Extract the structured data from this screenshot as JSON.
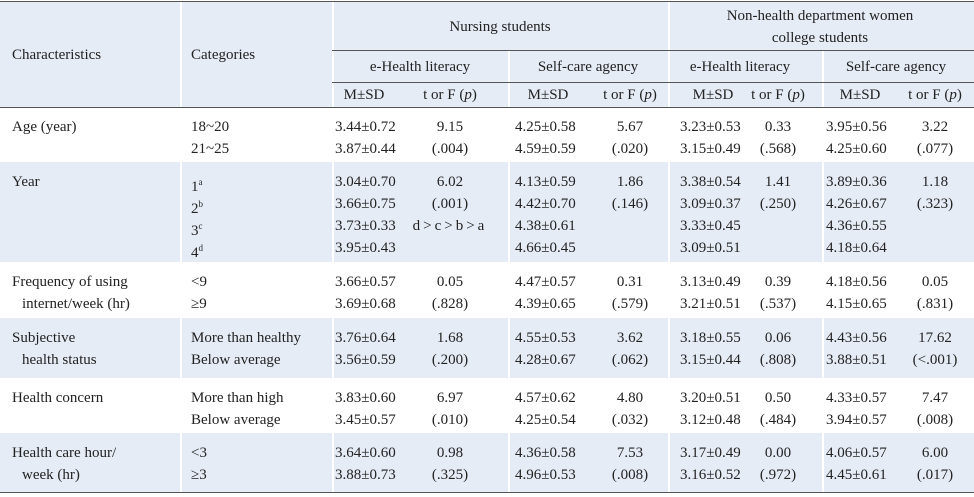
{
  "table": {
    "header": {
      "characteristics": "Characteristics",
      "categories": "Categories",
      "groups": [
        {
          "title": [
            "Nursing students"
          ],
          "sub": [
            "e-Health literacy",
            "Self-care agency"
          ]
        },
        {
          "title": [
            "Non-health department women",
            "college students"
          ],
          "sub": [
            "e-Health literacy",
            "Self-care agency"
          ]
        }
      ],
      "columns": [
        {
          "text": "M±SD"
        },
        {
          "pre": "t or F (",
          "italic": "p",
          "post": ")"
        },
        {
          "text": "M±SD"
        },
        {
          "pre": "t or F (",
          "italic": "p",
          "post": ")"
        },
        {
          "text": "M±SD"
        },
        {
          "pre": "t or F (",
          "italic": "p",
          "post": ")"
        },
        {
          "text": "M±SD"
        },
        {
          "pre": "t or F (",
          "italic": "p",
          "post": ")"
        }
      ]
    },
    "rows": [
      {
        "characteristic": [
          "Age (year)"
        ],
        "categories": [
          {
            "text": "18~20"
          },
          {
            "text": "21~25"
          }
        ],
        "cells": [
          [
            "3.44±0.72",
            "3.87±0.44"
          ],
          [
            "9.15",
            "(.004)"
          ],
          [
            "4.25±0.58",
            "4.59±0.59"
          ],
          [
            "5.67",
            "(.020)"
          ],
          [
            "3.23±0.53",
            "3.15±0.49"
          ],
          [
            "0.33",
            "(.568)"
          ],
          [
            "3.95±0.56",
            "4.25±0.60"
          ],
          [
            "3.22",
            "(.077)"
          ]
        ]
      },
      {
        "characteristic": [
          "Year"
        ],
        "categories": [
          {
            "text": "1",
            "sup": "a"
          },
          {
            "text": "2",
            "sup": "b"
          },
          {
            "text": "3",
            "sup": "c"
          },
          {
            "text": "4",
            "sup": "d"
          }
        ],
        "cells": [
          [
            "3.04±0.70",
            "3.66±0.75",
            "3.73±0.33",
            "3.95±0.43"
          ],
          [
            "6.02",
            "(.001)",
            "d>c>b>a"
          ],
          [
            "4.13±0.59",
            "4.42±0.70",
            "4.38±0.61",
            "4.66±0.45"
          ],
          [
            "1.86",
            "(.146)"
          ],
          [
            "3.38±0.54",
            "3.09±0.37",
            "3.33±0.45",
            "3.09±0.51"
          ],
          [
            "1.41",
            "(.250)"
          ],
          [
            "3.89±0.36",
            "4.26±0.67",
            "4.36±0.55",
            "4.18±0.64"
          ],
          [
            "1.18",
            "(.323)"
          ]
        ]
      },
      {
        "characteristic": [
          "Frequency of using",
          "internet/week (hr)"
        ],
        "categories": [
          {
            "text": "<9"
          },
          {
            "text": "≥9"
          }
        ],
        "cells": [
          [
            "3.66±0.57",
            "3.69±0.68"
          ],
          [
            "0.05",
            "(.828)"
          ],
          [
            "4.47±0.57",
            "4.39±0.65"
          ],
          [
            "0.31",
            "(.579)"
          ],
          [
            "3.13±0.49",
            "3.21±0.51"
          ],
          [
            "0.39",
            "(.537)"
          ],
          [
            "4.18±0.56",
            "4.15±0.65"
          ],
          [
            "0.05",
            "(.831)"
          ]
        ]
      },
      {
        "characteristic": [
          "Subjective",
          "health status"
        ],
        "categories": [
          {
            "text": "More than healthy"
          },
          {
            "text": "Below average"
          }
        ],
        "cells": [
          [
            "3.76±0.64",
            "3.56±0.59"
          ],
          [
            "1.68",
            "(.200)"
          ],
          [
            "4.55±0.53",
            "4.28±0.67"
          ],
          [
            "3.62",
            "(.062)"
          ],
          [
            "3.18±0.55",
            "3.15±0.44"
          ],
          [
            "0.06",
            "(.808)"
          ],
          [
            "4.43±0.56",
            "3.88±0.51"
          ],
          [
            "17.62",
            "(<.001)"
          ]
        ]
      },
      {
        "characteristic": [
          "Health concern"
        ],
        "categories": [
          {
            "text": "More than high"
          },
          {
            "text": "Below average"
          }
        ],
        "cells": [
          [
            "3.83±0.60",
            "3.45±0.57"
          ],
          [
            "6.97",
            "(.010)"
          ],
          [
            "4.57±0.62",
            "4.25±0.54"
          ],
          [
            "4.80",
            "(.032)"
          ],
          [
            "3.20±0.51",
            "3.12±0.48"
          ],
          [
            "0.50",
            "(.484)"
          ],
          [
            "4.33±0.57",
            "3.94±0.57"
          ],
          [
            "7.47",
            "(.008)"
          ]
        ]
      },
      {
        "characteristic": [
          "Health care hour/",
          "week (hr)"
        ],
        "categories": [
          {
            "text": "<3"
          },
          {
            "text": "≥3"
          }
        ],
        "cells": [
          [
            "3.64±0.60",
            "3.88±0.73"
          ],
          [
            "0.98",
            "(.325)"
          ],
          [
            "4.36±0.58",
            "4.96±0.53"
          ],
          [
            "7.53",
            "(.008)"
          ],
          [
            "3.17±0.49",
            "3.16±0.52"
          ],
          [
            "0.00",
            "(.972)"
          ],
          [
            "4.06±0.57",
            "4.45±0.61"
          ],
          [
            "6.00",
            "(.017)"
          ]
        ]
      }
    ]
  }
}
